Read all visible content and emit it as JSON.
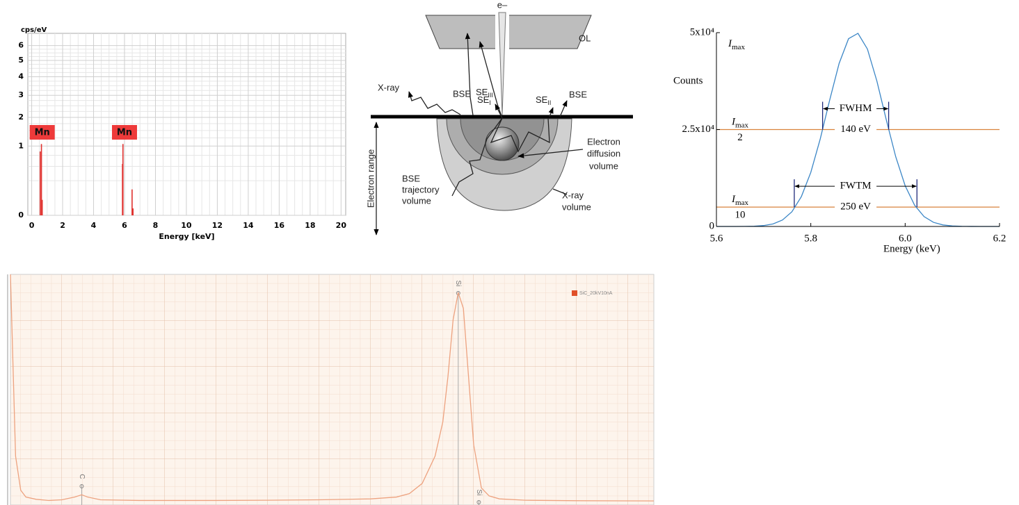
{
  "chart_data": [
    {
      "type": "bar",
      "y_label": "cps/eV",
      "x_label": "Energy [keV]",
      "x": [
        0.55,
        0.63,
        0.68,
        5.87,
        5.9,
        6.49,
        6.55
      ],
      "values": [
        0.85,
        1.06,
        0.05,
        0.55,
        1.06,
        0.14,
        0.01
      ],
      "color": "#e0322f",
      "xlim": [
        -0.25,
        20.3
      ],
      "ylim": [
        0,
        6.9
      ],
      "xticks": [
        0,
        2,
        4,
        6,
        8,
        10,
        12,
        14,
        16,
        18,
        20
      ],
      "yticks": [
        0,
        1,
        2,
        3,
        4,
        5,
        6
      ],
      "y_scale": "sqrt",
      "grid": true,
      "annotations": [
        {
          "text": "Mn",
          "x": 0.68
        },
        {
          "text": "Mn",
          "x": 6.0
        }
      ]
    },
    {
      "type": "line",
      "y_label": "Counts",
      "x_label": "Energy (keV)",
      "x": [
        5.6,
        5.62,
        5.64,
        5.66,
        5.68,
        5.7,
        5.72,
        5.74,
        5.76,
        5.78,
        5.8,
        5.82,
        5.84,
        5.86,
        5.88,
        5.9,
        5.92,
        5.94,
        5.96,
        5.98,
        6.0,
        6.02,
        6.04,
        6.06,
        6.08,
        6.1,
        6.12,
        6.14,
        6.16,
        6.18,
        6.2
      ],
      "values": [
        0,
        1,
        5,
        20,
        72,
        231,
        657,
        1670,
        3797,
        7699,
        13945,
        22566,
        32594,
        42046,
        48434,
        49823,
        45771,
        37546,
        27506,
        17990,
        10510,
        5484,
        2553,
        1063,
        395,
        131,
        39,
        10,
        2,
        1,
        0
      ],
      "color": "#3b86c6",
      "xlim": [
        5.6,
        6.2
      ],
      "ylim": [
        0,
        50000
      ],
      "xticks": [
        5.6,
        5.8,
        {
          "value": 6,
          "label": "6.0"
        },
        6.2
      ],
      "yticks": [
        0,
        {
          "value": 25000,
          "label": "2.5x10⁴"
        },
        {
          "value": 50000,
          "label": "5x10⁴"
        }
      ],
      "peak_label": {
        "symbol": "I",
        "subscript": "max"
      },
      "reference_lines": [
        {
          "value": 25000,
          "color": "#d9823b",
          "symbol": "I",
          "subscript": "max",
          "denominator": "2",
          "width_label": "140 eV",
          "interval_label": "FWHM",
          "x_range": [
            5.825,
            5.965
          ]
        },
        {
          "value": 5000,
          "color": "#d9823b",
          "symbol": "I",
          "subscript": "max",
          "denominator": "10",
          "width_label": "250 eV",
          "interval_label": "FWTM",
          "x_range": [
            5.765,
            6.025
          ]
        }
      ]
    },
    {
      "type": "line",
      "x": [
        0,
        0.01,
        0.02,
        0.04,
        0.06,
        0.1,
        0.15,
        0.2,
        0.25,
        0.277,
        0.3,
        0.35,
        0.5,
        0.8,
        1.0,
        1.2,
        1.4,
        1.5,
        1.55,
        1.6,
        1.65,
        1.68,
        1.7,
        1.72,
        1.74,
        1.76,
        1.78,
        1.8,
        1.83,
        1.86,
        1.9,
        2.0,
        2.2,
        2.5
      ],
      "series": [
        {
          "name": "SiC_20kV10nA",
          "color": "#eda27f",
          "values": [
            100,
            60,
            20,
            5,
            2,
            1,
            0.5,
            0.8,
            2,
            3,
            2,
            0.8,
            0.5,
            0.5,
            0.6,
            0.8,
            1.2,
            2,
            3.5,
            8,
            20,
            35,
            55,
            80,
            92,
            85,
            55,
            25,
            6,
            2.5,
            1.2,
            0.6,
            0.4,
            0.3
          ]
        }
      ],
      "xlim": [
        0,
        2.5
      ],
      "ylim": [
        -1.5,
        100
      ],
      "grid": true,
      "peak_labels": [
        {
          "text": "C",
          "x": 0.277
        },
        {
          "text": "Si",
          "x": 1.74
        },
        {
          "text": "Si",
          "x": 1.82
        }
      ]
    }
  ],
  "diagram": {
    "electron": "e–",
    "lens": "OL",
    "bse_left": "BSE",
    "se3": {
      "text": "SE",
      "subscript": "III"
    },
    "xray": "X-ray",
    "se1": {
      "text": "SE",
      "subscript": "I"
    },
    "se2": {
      "text": "SE",
      "subscript": "II"
    },
    "bse_right": "BSE",
    "electron_range": "Electron range",
    "diffusion": [
      "Electron",
      "diffusion",
      "volume"
    ],
    "bse_volume": [
      "BSE",
      "trajectory",
      "volume"
    ],
    "xray_volume": [
      "X-ray",
      "volume"
    ]
  }
}
